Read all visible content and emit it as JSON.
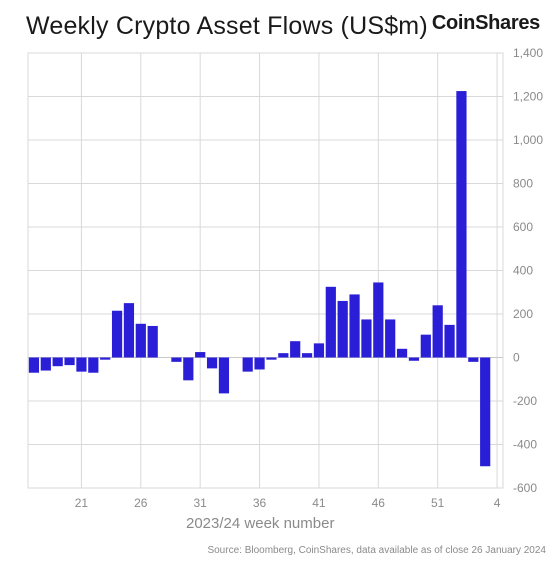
{
  "header": {
    "title": "Weekly Crypto Asset Flows (US$m)",
    "brand": "CoinShares"
  },
  "footer": {
    "source": "Source: Bloomberg, CoinShares, data available as of close 26 January 2024"
  },
  "chart_data": {
    "type": "bar",
    "title": "Weekly Crypto Asset Flows (US$m)",
    "xlabel": "2023/24 week number",
    "ylabel": "",
    "ylim": [
      -600,
      1400
    ],
    "yticks": [
      -600,
      -400,
      -200,
      0,
      200,
      400,
      600,
      800,
      1000,
      1200,
      1400
    ],
    "ytick_labels": [
      "-600",
      "-400",
      "-200",
      "0",
      "200",
      "400",
      "600",
      "800",
      "1,000",
      "1,200",
      "1,400"
    ],
    "xtick_labels": [
      "21",
      "26",
      "31",
      "36",
      "41",
      "46",
      "51",
      "4"
    ],
    "categories": [
      "17",
      "18",
      "19",
      "20",
      "21",
      "22",
      "23",
      "24",
      "25",
      "26",
      "27",
      "28",
      "29",
      "30",
      "31",
      "32",
      "33",
      "34",
      "35",
      "36",
      "37",
      "38",
      "39",
      "40",
      "41",
      "42",
      "43",
      "44",
      "45",
      "46",
      "47",
      "48",
      "49",
      "50",
      "51",
      "52",
      "1",
      "2",
      "3",
      "4"
    ],
    "values": [
      -70,
      -60,
      -40,
      -35,
      -65,
      -70,
      -10,
      215,
      250,
      155,
      145,
      0,
      -20,
      -105,
      25,
      -50,
      -165,
      0,
      -65,
      -55,
      -10,
      20,
      75,
      20,
      65,
      325,
      260,
      290,
      175,
      345,
      175,
      40,
      -15,
      105,
      240,
      150,
      1225,
      -20,
      -500,
      0
    ],
    "bar_color": "#2a1fd6",
    "axis_position": "right",
    "grid": true,
    "gridline_color": "#d9d9d9"
  }
}
